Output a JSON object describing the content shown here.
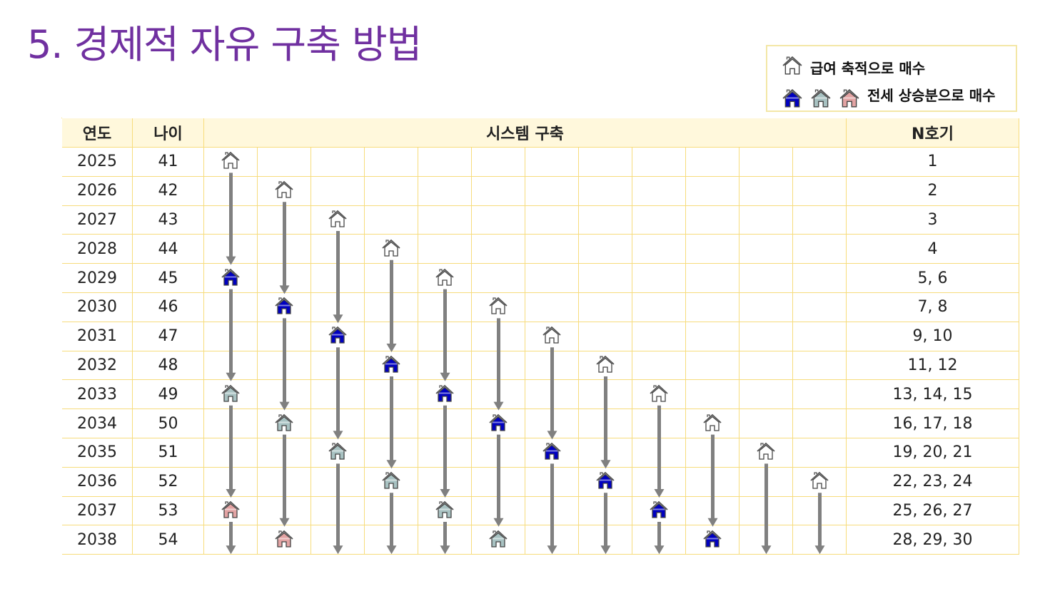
{
  "title": "5. 경제적 자유 구축 방법",
  "legend": {
    "salary_label": "급여 축적으로 매수",
    "jeonse_label": "전세 상승분으로 매수"
  },
  "colors": {
    "title": "#7030a0",
    "white_house": "#ffffff",
    "blue_house": "#0000c0",
    "gray_house": "#a8c2c2",
    "pink_house": "#e3a3a3",
    "arrow": "#808080",
    "grid": "#f7dc7c",
    "header_bg": "#fff8dc"
  },
  "table": {
    "headers": {
      "year": "연도",
      "age": "나이",
      "system": "시스템 구축",
      "n": "N호기"
    },
    "rows": [
      {
        "year": "2025",
        "age": "41",
        "n": "1"
      },
      {
        "year": "2026",
        "age": "42",
        "n": "2"
      },
      {
        "year": "2027",
        "age": "43",
        "n": "3"
      },
      {
        "year": "2028",
        "age": "44",
        "n": "4"
      },
      {
        "year": "2029",
        "age": "45",
        "n": "5, 6"
      },
      {
        "year": "2030",
        "age": "46",
        "n": "7, 8"
      },
      {
        "year": "2031",
        "age": "47",
        "n": "9, 10"
      },
      {
        "year": "2032",
        "age": "48",
        "n": "11, 12"
      },
      {
        "year": "2033",
        "age": "49",
        "n": "13, 14, 15"
      },
      {
        "year": "2034",
        "age": "50",
        "n": "16, 17, 18"
      },
      {
        "year": "2035",
        "age": "51",
        "n": "19, 20, 21"
      },
      {
        "year": "2036",
        "age": "52",
        "n": "22, 23, 24"
      },
      {
        "year": "2037",
        "age": "53",
        "n": "25, 26, 27"
      },
      {
        "year": "2038",
        "age": "54",
        "n": "28, 29, 30"
      }
    ],
    "system_columns": 12,
    "houses": [
      {
        "col": 0,
        "year": "2025",
        "type": "white"
      },
      {
        "col": 0,
        "year": "2029",
        "type": "blue"
      },
      {
        "col": 0,
        "year": "2033",
        "type": "gray"
      },
      {
        "col": 0,
        "year": "2037",
        "type": "pink"
      },
      {
        "col": 1,
        "year": "2026",
        "type": "white"
      },
      {
        "col": 1,
        "year": "2030",
        "type": "blue"
      },
      {
        "col": 1,
        "year": "2034",
        "type": "gray"
      },
      {
        "col": 1,
        "year": "2038",
        "type": "pink"
      },
      {
        "col": 2,
        "year": "2027",
        "type": "white"
      },
      {
        "col": 2,
        "year": "2031",
        "type": "blue"
      },
      {
        "col": 2,
        "year": "2035",
        "type": "gray"
      },
      {
        "col": 3,
        "year": "2028",
        "type": "white"
      },
      {
        "col": 3,
        "year": "2032",
        "type": "blue"
      },
      {
        "col": 3,
        "year": "2036",
        "type": "gray"
      },
      {
        "col": 4,
        "year": "2029",
        "type": "white"
      },
      {
        "col": 4,
        "year": "2033",
        "type": "blue"
      },
      {
        "col": 4,
        "year": "2037",
        "type": "gray"
      },
      {
        "col": 5,
        "year": "2030",
        "type": "white"
      },
      {
        "col": 5,
        "year": "2034",
        "type": "blue"
      },
      {
        "col": 5,
        "year": "2038",
        "type": "gray"
      },
      {
        "col": 6,
        "year": "2031",
        "type": "white"
      },
      {
        "col": 6,
        "year": "2035",
        "type": "blue"
      },
      {
        "col": 7,
        "year": "2032",
        "type": "white"
      },
      {
        "col": 7,
        "year": "2036",
        "type": "blue"
      },
      {
        "col": 8,
        "year": "2033",
        "type": "white"
      },
      {
        "col": 8,
        "year": "2037",
        "type": "blue"
      },
      {
        "col": 9,
        "year": "2034",
        "type": "white"
      },
      {
        "col": 9,
        "year": "2038",
        "type": "blue"
      },
      {
        "col": 10,
        "year": "2035",
        "type": "white"
      },
      {
        "col": 11,
        "year": "2036",
        "type": "white"
      }
    ]
  }
}
